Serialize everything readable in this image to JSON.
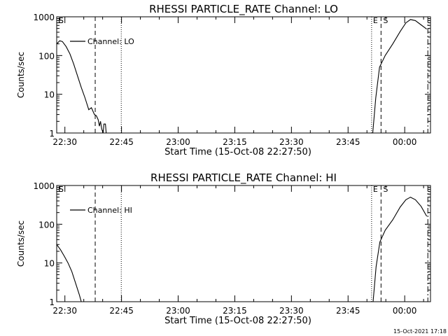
{
  "footer_timestamp": "15-Oct-2021 17:18",
  "colors": {
    "background": "#ffffff",
    "ink": "#000000"
  },
  "chart_data": [
    {
      "type": "line",
      "title": "RHESSI PARTICLE_RATE Channel: LO",
      "xlabel": "Start Time (15-Oct-08 22:27:50)",
      "ylabel": "Counts/sec",
      "x_unit": "minutes after 22:27:50",
      "xlim": [
        0,
        99
      ],
      "ylim": [
        1,
        1000
      ],
      "y_scale": "log",
      "x_ticks": [
        {
          "label": "22:30",
          "x": 2.17
        },
        {
          "label": "22:45",
          "x": 17.17
        },
        {
          "label": "23:00",
          "x": 32.17
        },
        {
          "label": "23:15",
          "x": 47.17
        },
        {
          "label": "23:30",
          "x": 62.17
        },
        {
          "label": "23:45",
          "x": 77.17
        },
        {
          "label": "00:00",
          "x": 92.17
        }
      ],
      "y_ticks": [
        {
          "label": "1",
          "y": 1
        },
        {
          "label": "10",
          "y": 10
        },
        {
          "label": "100",
          "y": 100
        },
        {
          "label": "1000",
          "y": 1000
        }
      ],
      "legend": {
        "label": "Channel: LO",
        "position": "top-left"
      },
      "series": [
        {
          "name": "Channel: LO",
          "segments": [
            [
              [
                0,
                200
              ],
              [
                0.8,
                240
              ],
              [
                1.5,
                230
              ],
              [
                2.5,
                170
              ],
              [
                3.5,
                110
              ],
              [
                4.5,
                60
              ],
              [
                5.5,
                30
              ],
              [
                6.5,
                15
              ],
              [
                7.5,
                8
              ],
              [
                8.5,
                4
              ],
              [
                9.2,
                4.5
              ],
              [
                10,
                3
              ],
              [
                10.5,
                2.8
              ],
              [
                11,
                2.2
              ],
              [
                11.3,
                1.5
              ],
              [
                11.6,
                2
              ],
              [
                11.9,
                1.3
              ],
              [
                12.3,
                1
              ],
              [
                12.5,
                1.7
              ],
              [
                12.9,
                1.7
              ],
              [
                13.1,
                1
              ]
            ],
            [
              [
                83.7,
                1
              ],
              [
                84.5,
                8
              ],
              [
                85.5,
                50
              ],
              [
                87,
                100
              ],
              [
                89,
                200
              ],
              [
                91,
                420
              ],
              [
                92.5,
                700
              ],
              [
                93.7,
                850
              ],
              [
                95,
                800
              ],
              [
                96.5,
                620
              ],
              [
                98,
                480
              ]
            ]
          ]
        }
      ],
      "markers": [
        {
          "label": "E",
          "x": 0,
          "style": "dotted"
        },
        {
          "label": "S",
          "x": 0,
          "style": "dashed"
        },
        {
          "x": 10.2,
          "style": "dashed"
        },
        {
          "x": 17.1,
          "style": "dotted"
        },
        {
          "label": "E",
          "x": 83.4,
          "style": "dotted"
        },
        {
          "label": "S",
          "x": 85.9,
          "style": "dashed"
        },
        {
          "x": 98.3,
          "style": "dashdot"
        }
      ]
    },
    {
      "type": "line",
      "title": "RHESSI PARTICLE_RATE Channel: HI",
      "xlabel": "Start Time (15-Oct-08 22:27:50)",
      "ylabel": "Counts/sec",
      "x_unit": "minutes after 22:27:50",
      "xlim": [
        0,
        99
      ],
      "ylim": [
        1,
        1000
      ],
      "y_scale": "log",
      "x_ticks": [
        {
          "label": "22:30",
          "x": 2.17
        },
        {
          "label": "22:45",
          "x": 17.17
        },
        {
          "label": "23:00",
          "x": 32.17
        },
        {
          "label": "23:15",
          "x": 47.17
        },
        {
          "label": "23:30",
          "x": 62.17
        },
        {
          "label": "23:45",
          "x": 77.17
        },
        {
          "label": "00:00",
          "x": 92.17
        }
      ],
      "y_ticks": [
        {
          "label": "1",
          "y": 1
        },
        {
          "label": "10",
          "y": 10
        },
        {
          "label": "100",
          "y": 100
        },
        {
          "label": "1000",
          "y": 1000
        }
      ],
      "legend": {
        "label": "Channel: HI",
        "position": "top-left"
      },
      "series": [
        {
          "name": "Channel: HI",
          "segments": [
            [
              [
                0,
                30
              ],
              [
                1,
                22
              ],
              [
                2,
                15
              ],
              [
                3,
                10
              ],
              [
                4,
                6
              ],
              [
                5,
                3
              ],
              [
                6,
                1.5
              ],
              [
                6.5,
                1
              ]
            ],
            [
              [
                83.8,
                1
              ],
              [
                84.6,
                8
              ],
              [
                85.6,
                35
              ],
              [
                87,
                70
              ],
              [
                89,
                130
              ],
              [
                91,
                280
              ],
              [
                92.5,
                430
              ],
              [
                93.7,
                500
              ],
              [
                95,
                430
              ],
              [
                96.5,
                290
              ],
              [
                98,
                160
              ]
            ]
          ]
        }
      ],
      "markers": [
        {
          "label": "E",
          "x": 0,
          "style": "dotted"
        },
        {
          "label": "S",
          "x": 0,
          "style": "dashed"
        },
        {
          "x": 10.2,
          "style": "dashed"
        },
        {
          "x": 17.1,
          "style": "dotted"
        },
        {
          "label": "E",
          "x": 83.4,
          "style": "dotted"
        },
        {
          "label": "S",
          "x": 85.9,
          "style": "dashed"
        },
        {
          "x": 98.3,
          "style": "dashdot"
        }
      ]
    }
  ]
}
